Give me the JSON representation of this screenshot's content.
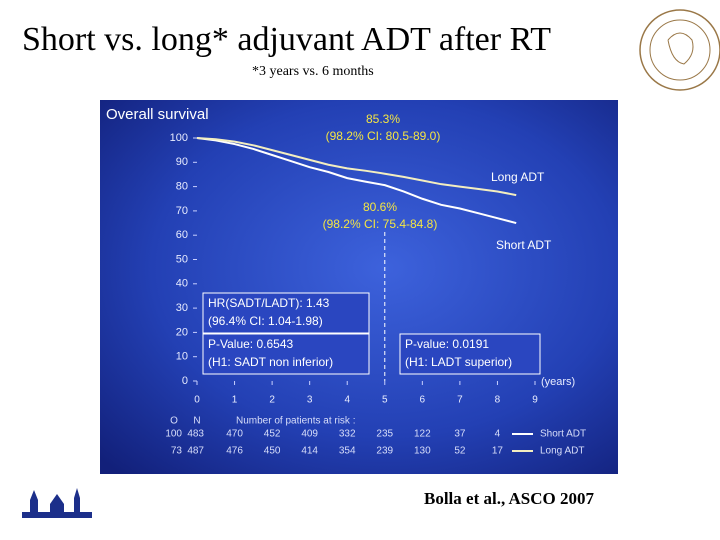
{
  "header": {
    "title": "Short vs. long* adjuvant ADT after RT",
    "subtitle": "*3 years vs. 6 months"
  },
  "chart_data": {
    "type": "line",
    "title": "Overall survival",
    "x_label": "(years)",
    "x": [
      0,
      0.5,
      1,
      1.5,
      2,
      2.5,
      3,
      3.5,
      4,
      4.5,
      5,
      5.5,
      6,
      6.5,
      7,
      7.5,
      8,
      8.5
    ],
    "series": [
      {
        "name": "Short ADT",
        "color": "#ffffff",
        "values": [
          100,
          99,
          97.5,
          95.5,
          93,
          90.5,
          88,
          86,
          83.5,
          82,
          80.6,
          78,
          75,
          72.5,
          71,
          69,
          67,
          65
        ]
      },
      {
        "name": "Long ADT",
        "color": "#f3eec0",
        "values": [
          100,
          99.5,
          98.5,
          97,
          95,
          93,
          91,
          89,
          87.5,
          86.5,
          85.3,
          84,
          82.5,
          81,
          80,
          79,
          78,
          76.5
        ]
      }
    ],
    "xlim": [
      0,
      9
    ],
    "ylim": [
      0,
      100
    ],
    "xticks": [
      0,
      1,
      2,
      3,
      4,
      5,
      6,
      7,
      8,
      9
    ],
    "yticks": [
      0,
      10,
      20,
      30,
      40,
      50,
      60,
      70,
      80,
      90,
      100
    ],
    "annotations": [
      [
        "85.3%",
        "(98.2% CI: 80.5-89.0)"
      ],
      [
        "80.6%",
        "(98.2% CI: 75.4-84.8)"
      ]
    ],
    "boxes": [
      [
        "HR(SADT/LADT): 1.43",
        "(96.4% CI: 1.04-1.98)"
      ],
      [
        "P-Value: 0.6543",
        "(H1: SADT non inferior)"
      ],
      [
        "P-value: 0.0191",
        "(H1: LADT superior)"
      ]
    ]
  },
  "risk_table": {
    "title": "Number of patients at risk :",
    "headers": [
      "O",
      "N"
    ],
    "rows": [
      {
        "O": 100,
        "N": 483,
        "counts": [
          470,
          452,
          409,
          332,
          235,
          122,
          37,
          4
        ]
      },
      {
        "O": 73,
        "N": 487,
        "counts": [
          476,
          450,
          414,
          354,
          239,
          130,
          52,
          17
        ]
      }
    ]
  },
  "footer": {
    "citation": "Bolla et al., ASCO 2007"
  }
}
